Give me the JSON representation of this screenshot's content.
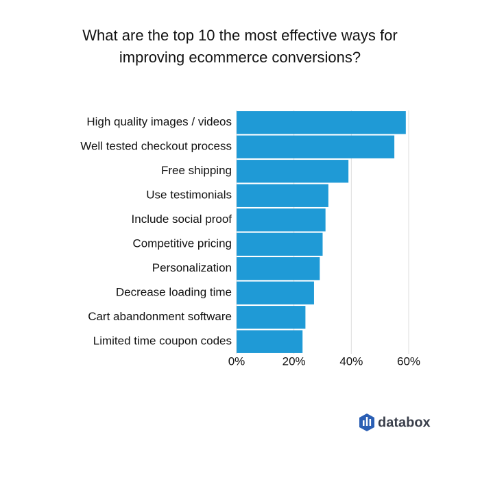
{
  "chart_data": {
    "type": "hbar",
    "title": "What are the top 10 the most effective ways for improving ecommerce conversions?",
    "categories": [
      "High quality images / videos",
      "Well tested checkout process",
      "Free shipping",
      "Use testimonials",
      "Include social proof",
      "Competitive pricing",
      "Personalization",
      "Decrease loading time",
      "Cart abandonment software",
      "Limited time coupon codes"
    ],
    "values": [
      59,
      55,
      39,
      32,
      31,
      30,
      29,
      27,
      24,
      23
    ],
    "color": "#1f9ad6",
    "xlim": [
      0,
      60
    ],
    "xticks": [
      {
        "value": 0,
        "label": "0%"
      },
      {
        "value": 20,
        "label": "20%"
      },
      {
        "value": 40,
        "label": "40%"
      },
      {
        "value": 60,
        "label": "60%"
      }
    ],
    "grid": true
  },
  "footer": {
    "brand": "databox"
  }
}
